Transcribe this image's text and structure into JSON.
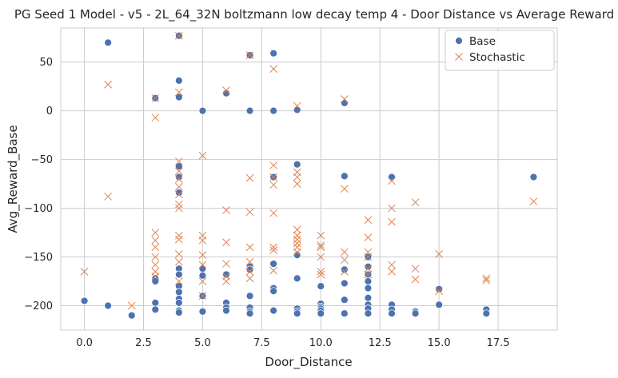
{
  "chart_data": {
    "type": "scatter",
    "title": "PG Seed 1 Model - v5 - 2L_64_32N boltzmann low decay temp 4 - Door Distance vs Average Reward",
    "xlabel": "Door_Distance",
    "ylabel": "Avg_Reward_Base",
    "xlim": [
      -1,
      20
    ],
    "ylim": [
      -225,
      85
    ],
    "xticks": [
      0,
      2.5,
      5,
      7.5,
      10,
      12.5,
      15,
      17.5
    ],
    "xtick_labels": [
      "0.0",
      "2.5",
      "5.0",
      "7.5",
      "10.0",
      "12.5",
      "15.0",
      "17.5"
    ],
    "yticks": [
      50,
      0,
      -50,
      -100,
      -150,
      -200
    ],
    "ytick_labels": [
      "50",
      "0",
      "−50",
      "−100",
      "−150",
      "−200"
    ],
    "grid": true,
    "legend_position": "top-right",
    "series": [
      {
        "name": "Base",
        "marker": "circle",
        "color": "#4c72b0",
        "points": [
          [
            0,
            -195
          ],
          [
            1,
            70
          ],
          [
            1,
            -200
          ],
          [
            2,
            -210
          ],
          [
            3,
            13
          ],
          [
            3,
            -172
          ],
          [
            3,
            -175
          ],
          [
            3,
            -197
          ],
          [
            3,
            -204
          ],
          [
            4,
            77
          ],
          [
            4,
            31
          ],
          [
            4,
            14
          ],
          [
            4,
            -57
          ],
          [
            4,
            -68
          ],
          [
            4,
            -84
          ],
          [
            4,
            -162
          ],
          [
            4,
            -168
          ],
          [
            4,
            -180
          ],
          [
            4,
            -186
          ],
          [
            4,
            -193
          ],
          [
            4,
            -197
          ],
          [
            4,
            -205
          ],
          [
            4,
            -207
          ],
          [
            5,
            0
          ],
          [
            5,
            -162
          ],
          [
            5,
            -169
          ],
          [
            5,
            -190
          ],
          [
            5,
            -206
          ],
          [
            6,
            18
          ],
          [
            6,
            -168
          ],
          [
            6,
            -197
          ],
          [
            6,
            -202
          ],
          [
            6,
            -205
          ],
          [
            7,
            57
          ],
          [
            7,
            0
          ],
          [
            7,
            -160
          ],
          [
            7,
            -163
          ],
          [
            7,
            -190
          ],
          [
            7,
            -202
          ],
          [
            7,
            -206
          ],
          [
            7,
            -208
          ],
          [
            8,
            59
          ],
          [
            8,
            0
          ],
          [
            8,
            -68
          ],
          [
            8,
            -157
          ],
          [
            8,
            -182
          ],
          [
            8,
            -185
          ],
          [
            8,
            -205
          ],
          [
            9,
            1
          ],
          [
            9,
            -55
          ],
          [
            9,
            -148
          ],
          [
            9,
            -172
          ],
          [
            9,
            -203
          ],
          [
            9,
            -206
          ],
          [
            9,
            -208
          ],
          [
            10,
            -180
          ],
          [
            10,
            -198
          ],
          [
            10,
            -201
          ],
          [
            10,
            -203
          ],
          [
            10,
            -205
          ],
          [
            10,
            -208
          ],
          [
            11,
            8
          ],
          [
            11,
            -67
          ],
          [
            11,
            -163
          ],
          [
            11,
            -177
          ],
          [
            11,
            -194
          ],
          [
            11,
            -208
          ],
          [
            12,
            -150
          ],
          [
            12,
            -160
          ],
          [
            12,
            -168
          ],
          [
            12,
            -175
          ],
          [
            12,
            -182
          ],
          [
            12,
            -192
          ],
          [
            12,
            -199
          ],
          [
            12,
            -203
          ],
          [
            12,
            -208
          ],
          [
            13,
            -68
          ],
          [
            13,
            -199
          ],
          [
            13,
            -204
          ],
          [
            13,
            -208
          ],
          [
            14,
            -206
          ],
          [
            14,
            -208
          ],
          [
            15,
            -183
          ],
          [
            15,
            -199
          ],
          [
            17,
            -204
          ],
          [
            17,
            -208
          ],
          [
            19,
            -68
          ]
        ]
      },
      {
        "name": "Stochastic",
        "marker": "x",
        "color": "#dd8452",
        "points": [
          [
            0,
            -165
          ],
          [
            1,
            27
          ],
          [
            1,
            -88
          ],
          [
            2,
            -200
          ],
          [
            3,
            13
          ],
          [
            3,
            -7
          ],
          [
            3,
            -125
          ],
          [
            3,
            -133
          ],
          [
            3,
            -140
          ],
          [
            3,
            -150
          ],
          [
            3,
            -158
          ],
          [
            3,
            -165
          ],
          [
            3,
            -170
          ],
          [
            4,
            77
          ],
          [
            4,
            19
          ],
          [
            4,
            -52
          ],
          [
            4,
            -62
          ],
          [
            4,
            -70
          ],
          [
            4,
            -78
          ],
          [
            4,
            -86
          ],
          [
            4,
            -96
          ],
          [
            4,
            -100
          ],
          [
            4,
            -128
          ],
          [
            4,
            -132
          ],
          [
            4,
            -147
          ],
          [
            4,
            -155
          ],
          [
            4,
            -175
          ],
          [
            5,
            -46
          ],
          [
            5,
            -128
          ],
          [
            5,
            -133
          ],
          [
            5,
            -148
          ],
          [
            5,
            -158
          ],
          [
            5,
            -175
          ],
          [
            5,
            -190
          ],
          [
            6,
            21
          ],
          [
            6,
            -102
          ],
          [
            6,
            -135
          ],
          [
            6,
            -157
          ],
          [
            6,
            -170
          ],
          [
            6,
            -175
          ],
          [
            7,
            57
          ],
          [
            7,
            -69
          ],
          [
            7,
            -104
          ],
          [
            7,
            -140
          ],
          [
            7,
            -155
          ],
          [
            7,
            -165
          ],
          [
            7,
            -172
          ],
          [
            8,
            43
          ],
          [
            8,
            -56
          ],
          [
            8,
            -68
          ],
          [
            8,
            -76
          ],
          [
            8,
            -105
          ],
          [
            8,
            -140
          ],
          [
            8,
            -143
          ],
          [
            8,
            -164
          ],
          [
            9,
            5
          ],
          [
            9,
            -63
          ],
          [
            9,
            -68
          ],
          [
            9,
            -75
          ],
          [
            9,
            -122
          ],
          [
            9,
            -128
          ],
          [
            9,
            -132
          ],
          [
            9,
            -136
          ],
          [
            9,
            -140
          ],
          [
            9,
            -145
          ],
          [
            10,
            -128
          ],
          [
            10,
            -138
          ],
          [
            10,
            -140
          ],
          [
            10,
            -150
          ],
          [
            10,
            -165
          ],
          [
            10,
            -168
          ],
          [
            11,
            12
          ],
          [
            11,
            -80
          ],
          [
            11,
            -145
          ],
          [
            11,
            -153
          ],
          [
            11,
            -165
          ],
          [
            12,
            -112
          ],
          [
            12,
            -130
          ],
          [
            12,
            -145
          ],
          [
            12,
            -150
          ],
          [
            12,
            -162
          ],
          [
            12,
            -168
          ],
          [
            13,
            -72
          ],
          [
            13,
            -100
          ],
          [
            13,
            -114
          ],
          [
            13,
            -158
          ],
          [
            13,
            -165
          ],
          [
            14,
            -94
          ],
          [
            14,
            -162
          ],
          [
            14,
            -173
          ],
          [
            15,
            -147
          ],
          [
            15,
            -185
          ],
          [
            17,
            -172
          ],
          [
            17,
            -174
          ],
          [
            19,
            -93
          ]
        ]
      }
    ]
  },
  "colors": {
    "base": "#4c72b0",
    "stochastic": "#dd8452",
    "grid": "#cccccc",
    "axes_edge": "#cccccc"
  }
}
